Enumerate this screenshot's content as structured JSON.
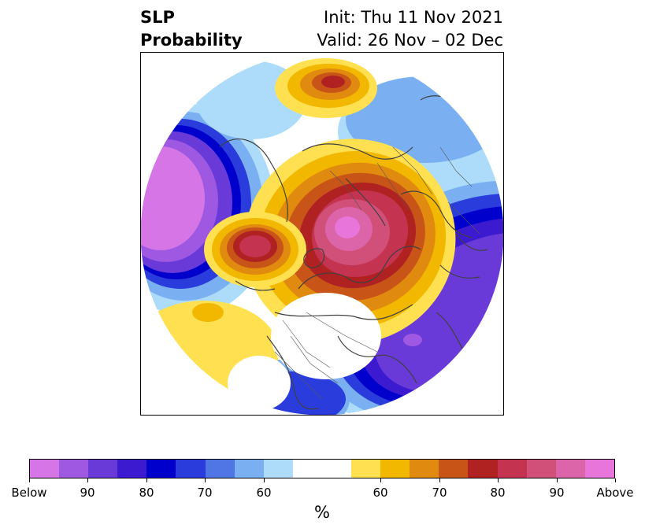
{
  "title": {
    "left_line1": "SLP",
    "left_line2": "Probability",
    "right_line1": "Init: Thu 11 Nov 2021",
    "right_line2": "Valid: 26 Nov – 02 Dec"
  },
  "colorbar": {
    "unit": "%",
    "colors": [
      "#d676e6",
      "#9e58e2",
      "#6a3ad8",
      "#3b1ad0",
      "#0000cc",
      "#2a3cdc",
      "#5076e6",
      "#7ab0f2",
      "#acdcfa",
      "#ffffff",
      "#ffffff",
      "#ffe050",
      "#f2b800",
      "#e08a10",
      "#c85418",
      "#b02222",
      "#c43450",
      "#d0507a",
      "#dc64a8",
      "#e876da"
    ],
    "tick_labels": [
      "Below",
      "90",
      "80",
      "70",
      "60",
      "60",
      "70",
      "80",
      "90",
      "Above"
    ]
  },
  "map": {
    "projection": "north-polar-stereographic",
    "palette": {
      "below_strong": "#d676e6",
      "below_mid": "#6a3ad8",
      "below_dark": "#0000cc",
      "below_light": "#7ab0f2",
      "below_faint": "#acdcfa",
      "above_faint": "#ffe050",
      "above_light": "#f2b800",
      "above_mid": "#e08a10",
      "above_dark": "#b02222",
      "above_strong": "#e876da"
    }
  }
}
